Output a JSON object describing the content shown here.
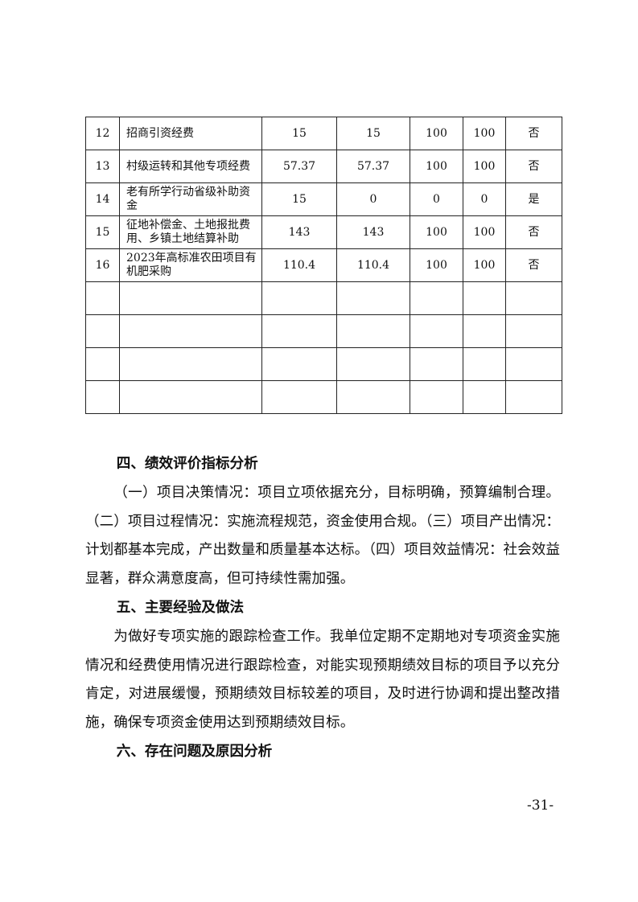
{
  "table": {
    "rows": [
      [
        "12",
        "招商引资经费",
        "15",
        "15",
        "100",
        "100",
        "否"
      ],
      [
        "13",
        "村级运转和其他专项经费",
        "57.37",
        "57.37",
        "100",
        "100",
        "否"
      ],
      [
        "14",
        "老有所学行动省级补助资金",
        "15",
        "0",
        "0",
        "0",
        "是"
      ],
      [
        "15",
        "征地补偿金、土地报批费用、乡镇土地结算补助",
        "143",
        "143",
        "100",
        "100",
        "否"
      ],
      [
        "16",
        "2023年高标准农田项目有机肥采购",
        "110.4",
        "110.4",
        "100",
        "100",
        "否"
      ]
    ]
  },
  "sections": [
    {
      "heading": "四、绩效评价指标分析",
      "text": "（一）项目决策情况：项目立项依据充分，目标明确，预算编制合理。（二）项目过程情况：实施流程规范，资金使用合规。（三）项目产出情况：计划都基本完成，产出数量和质量基本达标。（四）项目效益情况：社会效益显著，群众满意度高，但可持续性需加强。"
    },
    {
      "heading": "五、主要经验及做法",
      "text": "为做好专项实施的跟踪检查工作。我单位定期不定期地对专项资金实施情况和经费使用情况进行跟踪检查，对能实现预期绩效目标的项目予以充分肯定，对进展缓慢，预期绩效目标较差的项目，及时进行协调和提出整改措施，确保专项资金使用达到预期绩效目标。"
    },
    {
      "heading": "六、存在问题及原因分析"
    }
  ],
  "footer": {
    "page_number": "-31-"
  }
}
